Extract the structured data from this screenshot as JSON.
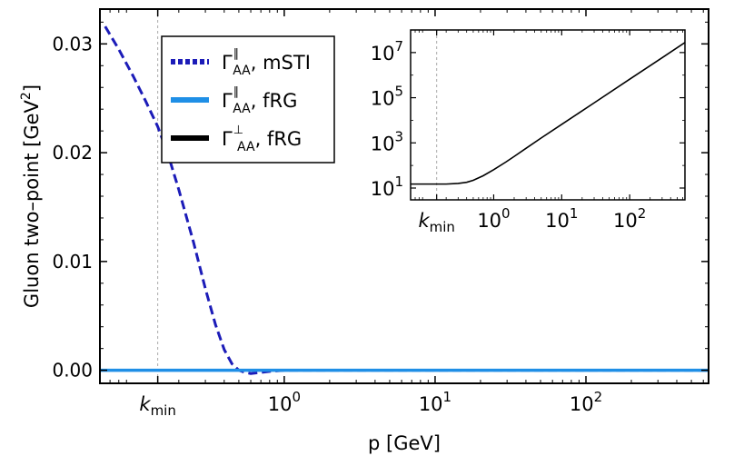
{
  "chart_data": [
    {
      "type": "line",
      "xlabel": "p [GeV]",
      "ylabel": "Gluon two–point [GeV",
      "ylabel_sup": "2",
      "ylabel_close": "]",
      "x_scale": "log",
      "xlim": [
        0.06,
        650
      ],
      "ylim": [
        -0.0012,
        0.0332
      ],
      "xticks": [
        {
          "value": 0.145,
          "base": "k",
          "sub": "min"
        },
        {
          "value": 1,
          "base": "10",
          "exp": "0"
        },
        {
          "value": 10,
          "base": "10",
          "exp": "1"
        },
        {
          "value": 100,
          "base": "10",
          "exp": "2"
        }
      ],
      "yticks": [
        {
          "value": 0.0,
          "label": "0.00"
        },
        {
          "value": 0.01,
          "label": "0.01"
        },
        {
          "value": 0.02,
          "label": "0.02"
        },
        {
          "value": 0.03,
          "label": "0.03"
        }
      ],
      "vline_x": 0.145,
      "grid": false,
      "legend_position": "top-left",
      "legend": [
        {
          "sym": "Γ",
          "sup": "∥",
          "sub": "AA",
          "suffix": ", mSTI",
          "color": "#1c1cb8",
          "style": "dotted"
        },
        {
          "sym": "Γ",
          "sup": "∥",
          "sub": "AA",
          "suffix": ", fRG",
          "color": "#1f8fe6",
          "style": "solid"
        },
        {
          "sym": "Γ",
          "sup": "⊥",
          "sub": "AA",
          "suffix": ", fRG",
          "color": "#000000",
          "style": "solid"
        }
      ],
      "series": [
        {
          "color": "#1c1cb8",
          "style": "dashed",
          "x": [
            0.065,
            0.08,
            0.1,
            0.12,
            0.145,
            0.17,
            0.2,
            0.25,
            0.3,
            0.35,
            0.4,
            0.45,
            0.5,
            0.55,
            0.6,
            0.7,
            0.8,
            1.0,
            1.5,
            2,
            5,
            10,
            100,
            650
          ],
          "y": [
            0.0316,
            0.0295,
            0.027,
            0.0248,
            0.0224,
            0.0198,
            0.0166,
            0.0118,
            0.0075,
            0.0042,
            0.0019,
            0.0006,
            0.0,
            -0.0002,
            -0.0003,
            -0.0002,
            -0.0001,
            0.0,
            0.0,
            0.0,
            0.0,
            0.0,
            0.0,
            0.0
          ]
        },
        {
          "color": "#1f8fe6",
          "style": "solid",
          "x": [
            0.06,
            650
          ],
          "y": [
            0.0,
            0.0
          ]
        }
      ]
    },
    {
      "type": "line",
      "panel": "inset",
      "x_scale": "log",
      "y_scale": "log",
      "xlim": [
        0.06,
        650
      ],
      "ylim": [
        3,
        100000000
      ],
      "xticks": [
        {
          "value": 0.145,
          "base": "k",
          "sub": "min"
        },
        {
          "value": 1,
          "base": "10",
          "exp": "0"
        },
        {
          "value": 10,
          "base": "10",
          "exp": "1"
        },
        {
          "value": 100,
          "base": "10",
          "exp": "2"
        }
      ],
      "yticks": [
        {
          "value": 10,
          "base": "10",
          "exp": "1"
        },
        {
          "value": 1000,
          "base": "10",
          "exp": "3"
        },
        {
          "value": 100000,
          "base": "10",
          "exp": "5"
        },
        {
          "value": 10000000,
          "base": "10",
          "exp": "7"
        }
      ],
      "vline_x": 0.145,
      "series": [
        {
          "color": "#000000",
          "style": "solid",
          "x": [
            0.06,
            0.1,
            0.2,
            0.3,
            0.4,
            0.5,
            0.7,
            1.0,
            1.5,
            2,
            3,
            5,
            10,
            30,
            100,
            300,
            650
          ],
          "y": [
            15,
            15,
            15,
            16,
            18,
            22,
            35,
            65,
            140,
            250,
            580,
            1650,
            6600,
            59000,
            660000,
            5900000,
            28000000
          ]
        }
      ]
    }
  ]
}
